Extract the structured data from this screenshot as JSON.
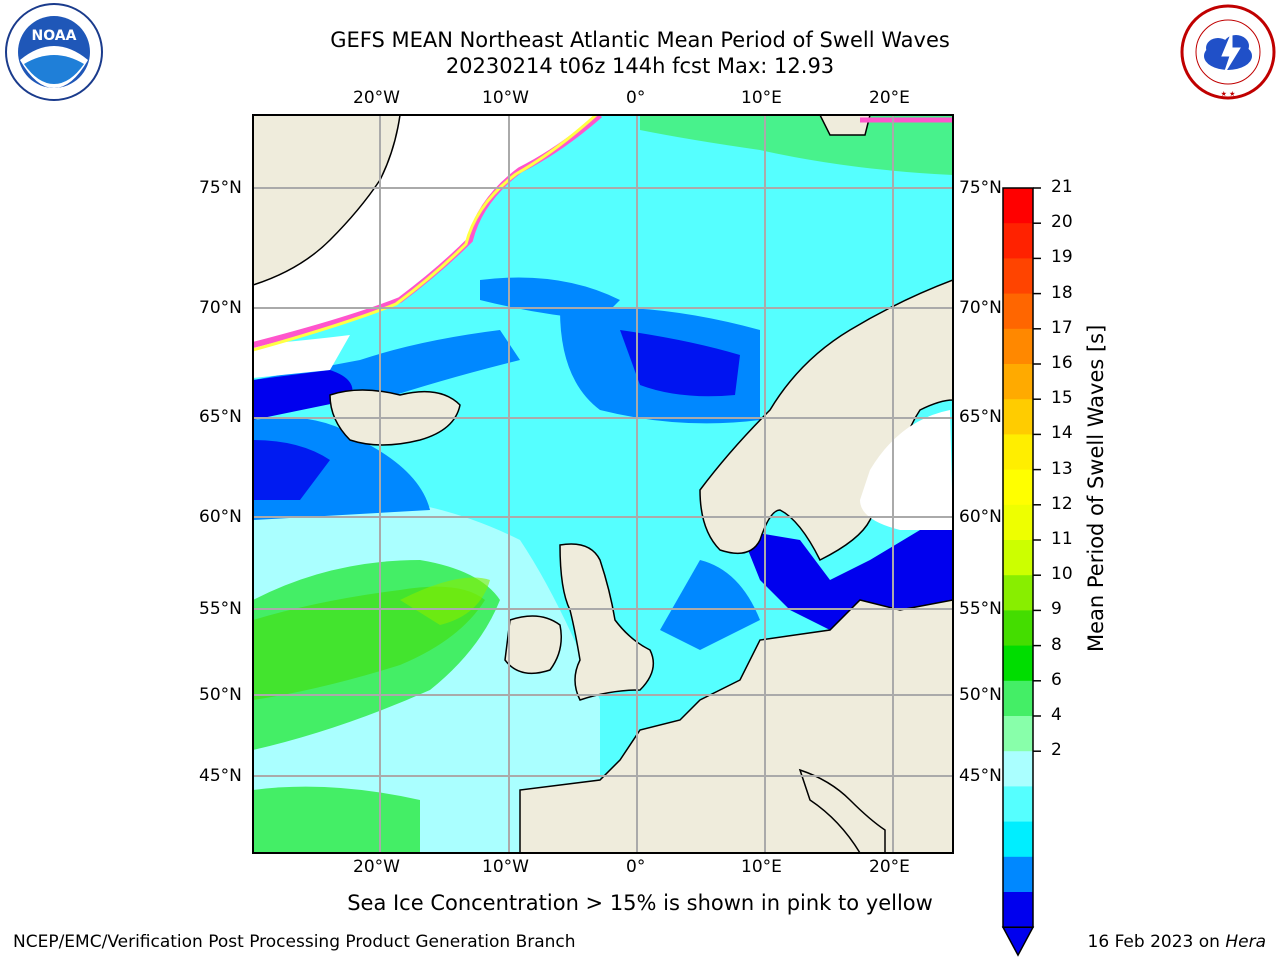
{
  "header": {
    "title_line1": "GEFS MEAN Northeast Atlantic Mean Period of Swell Waves",
    "title_line2": "20230214 t06z 144h fcst   Max: 12.93"
  },
  "logos": {
    "left": {
      "name": "noaa-logo",
      "text": "NOAA",
      "ring_text": "NATIONAL OCEANIC AND ATMOSPHERIC ADMINISTRATION · U.S. DEPARTMENT OF COMMERCE"
    },
    "right": {
      "name": "nws-logo",
      "ring_text": "NATIONAL WEATHER SERVICE"
    }
  },
  "map": {
    "lon_labels": [
      "20°W",
      "10°W",
      "0°",
      "10°E",
      "20°E"
    ],
    "lat_labels": [
      "75°N",
      "70°N",
      "65°N",
      "60°N",
      "55°N",
      "50°N",
      "45°N"
    ],
    "land_color": "#efecdc",
    "ice_note": "Sea Ice Concentration > 15% is shown in pink to yellow"
  },
  "colorbar": {
    "title": "Mean Period of Swell Waves [s]",
    "ticks": [
      "21",
      "20",
      "19",
      "18",
      "17",
      "16",
      "15",
      "14",
      "13",
      "12",
      "11",
      "10",
      "9",
      "8",
      "6",
      "4",
      "2"
    ],
    "colors": [
      "#ff0000",
      "#ff2200",
      "#ff4400",
      "#ff6600",
      "#ff8800",
      "#ffaa00",
      "#ffcc00",
      "#ffee00",
      "#ffff00",
      "#eeff00",
      "#ccff00",
      "#88ee00",
      "#44dd00",
      "#00dd00",
      "#44ee66",
      "#88ffaa",
      "#aaffff",
      "#55ffff",
      "#00eeff",
      "#0088ff",
      "#0000ee"
    ]
  },
  "footer": {
    "left": "NCEP/EMC/Verification Post Processing Product Generation Branch",
    "right_date": "16 Feb 2023 on ",
    "right_host": "Hera"
  }
}
